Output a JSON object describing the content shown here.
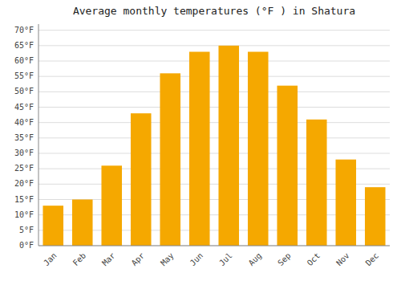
{
  "chart_data": {
    "type": "bar",
    "title": "Average monthly temperatures (°F ) in Shatura",
    "categories": [
      "Jan",
      "Feb",
      "Mar",
      "Apr",
      "May",
      "Jun",
      "Jul",
      "Aug",
      "Sep",
      "Oct",
      "Nov",
      "Dec"
    ],
    "values": [
      13,
      15,
      26,
      43,
      56,
      63,
      65,
      63,
      52,
      41,
      28,
      19
    ],
    "color": "#F5A800",
    "ylim": [
      0,
      72
    ],
    "yticks": [
      {
        "value": 0,
        "label": "0°F"
      },
      {
        "value": 5,
        "label": "5°F"
      },
      {
        "value": 10,
        "label": "10°F"
      },
      {
        "value": 15,
        "label": "15°F"
      },
      {
        "value": 20,
        "label": "20°F"
      },
      {
        "value": 25,
        "label": "25°F"
      },
      {
        "value": 30,
        "label": "30°F"
      },
      {
        "value": 35,
        "label": "35°F"
      },
      {
        "value": 40,
        "label": "40°F"
      },
      {
        "value": 45,
        "label": "45°F"
      },
      {
        "value": 50,
        "label": "50°F"
      },
      {
        "value": 55,
        "label": "55°F"
      },
      {
        "value": 60,
        "label": "60°F"
      },
      {
        "value": 65,
        "label": "65°F"
      },
      {
        "value": 70,
        "label": "70°F"
      }
    ],
    "grid": true
  }
}
